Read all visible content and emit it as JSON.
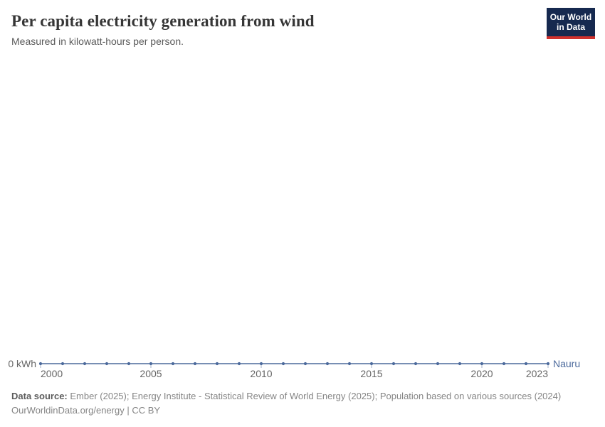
{
  "header": {
    "title": "Per capita electricity generation from wind",
    "subtitle": "Measured in kilowatt-hours per person.",
    "logo": {
      "line1": "Our World",
      "line2": "in Data",
      "brand_navy": "#16294f",
      "brand_red": "#d0312d"
    }
  },
  "chart_data": {
    "type": "line",
    "title": "Per capita electricity generation from wind",
    "subtitle": "Measured in kilowatt-hours per person.",
    "xlabel": "",
    "ylabel": "kilowatt-hours per person",
    "xlim": [
      2000,
      2023
    ],
    "ylim": [
      0,
      0
    ],
    "grid": false,
    "legend_position": "line-end-label",
    "x_ticks": [
      2000,
      2005,
      2010,
      2015,
      2020,
      2023
    ],
    "ytick_label": "0 kWh",
    "series": [
      {
        "name": "Nauru",
        "color": "#4c6a9c",
        "x": [
          2000,
          2001,
          2002,
          2003,
          2004,
          2005,
          2006,
          2007,
          2008,
          2009,
          2010,
          2011,
          2012,
          2013,
          2014,
          2015,
          2016,
          2017,
          2018,
          2019,
          2020,
          2021,
          2022,
          2023
        ],
        "values": [
          0,
          0,
          0,
          0,
          0,
          0,
          0,
          0,
          0,
          0,
          0,
          0,
          0,
          0,
          0,
          0,
          0,
          0,
          0,
          0,
          0,
          0,
          0,
          0
        ]
      }
    ]
  },
  "footer": {
    "source_label": "Data source:",
    "sources": "Ember (2025); Energy Institute - Statistical Review of World Energy (2025); Population based on various sources (2024)",
    "license_line": "OurWorldinData.org/energy | CC BY"
  }
}
